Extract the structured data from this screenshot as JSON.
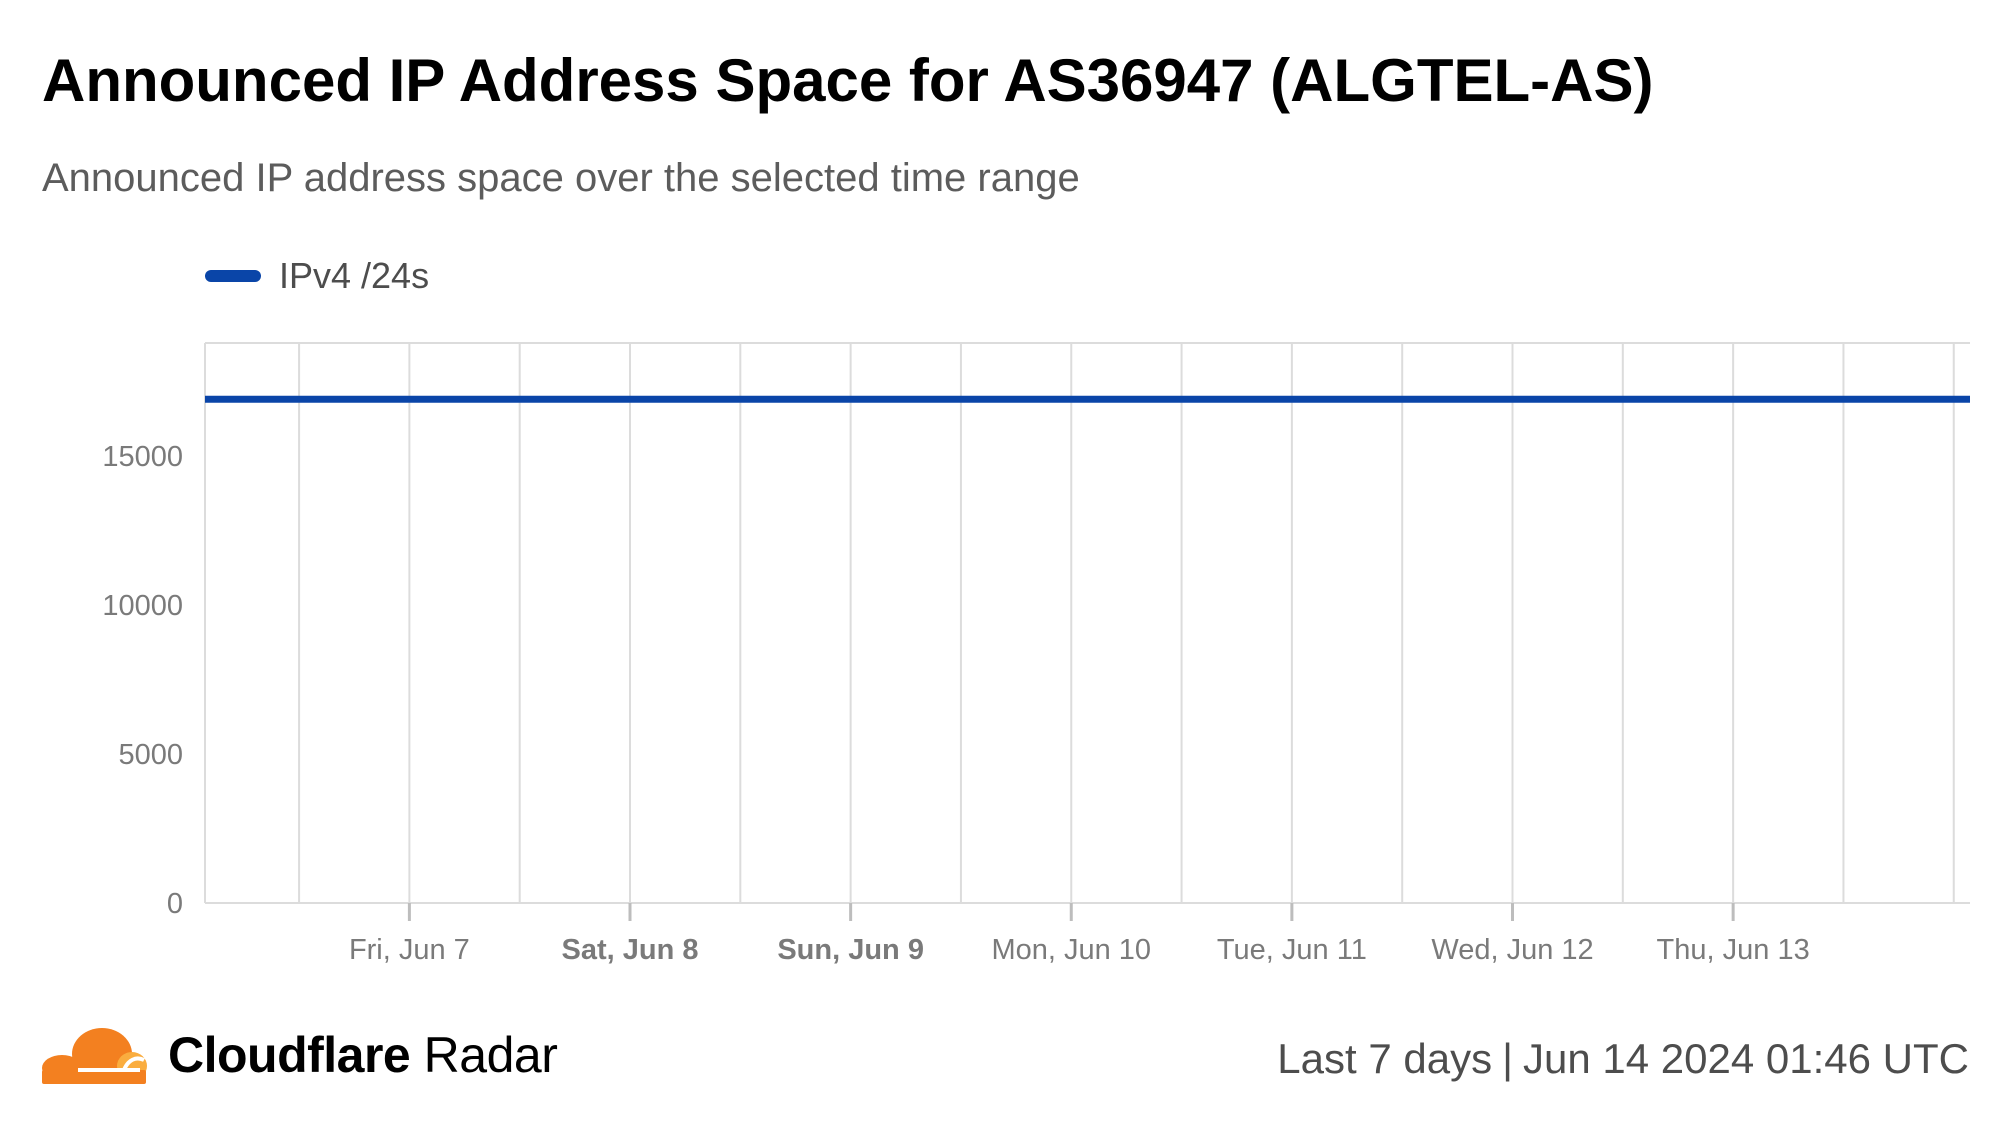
{
  "title": "Announced IP Address Space for AS36947 (ALGTEL-AS)",
  "subtitle": "Announced IP address space over the selected time range",
  "footer": {
    "brand_bold": "Cloudflare",
    "brand_light": "Radar",
    "range": "Last 7 days",
    "separator": "|",
    "timestamp": "Jun 14 2024 01:46 UTC"
  },
  "colors": {
    "series": "#0a45a8",
    "grid": "#dcdcdc",
    "axis_text": "#7a7a7a",
    "cloud_orange": "#f38020",
    "cloud_light": "#faad3f"
  },
  "chart_data": {
    "type": "line",
    "title": "Announced IP Address Space for AS36947 (ALGTEL-AS)",
    "subtitle": "Announced IP address space over the selected time range",
    "legend": "top-left",
    "grid": true,
    "x_ticks": [
      {
        "label": "Fri, Jun 7",
        "bold": false
      },
      {
        "label": "Sat, Jun 8",
        "bold": true
      },
      {
        "label": "Sun, Jun 9",
        "bold": true
      },
      {
        "label": "Mon, Jun 10",
        "bold": false
      },
      {
        "label": "Tue, Jun 11",
        "bold": false
      },
      {
        "label": "Wed, Jun 12",
        "bold": false
      },
      {
        "label": "Thu, Jun 13",
        "bold": false
      }
    ],
    "xlim": [
      "Jun 6 2024 01:46 UTC",
      "Jun 14 2024 01:46 UTC"
    ],
    "y_ticks": [
      0,
      5000,
      10000,
      15000
    ],
    "ylim": [
      0,
      18800
    ],
    "series": [
      {
        "name": "IPv4 /24s",
        "color": "#0a45a8",
        "x": [
          "Jun 6 2024 01:46 UTC",
          "Jun 14 2024 01:46 UTC"
        ],
        "values": [
          16910,
          16910
        ]
      }
    ]
  }
}
